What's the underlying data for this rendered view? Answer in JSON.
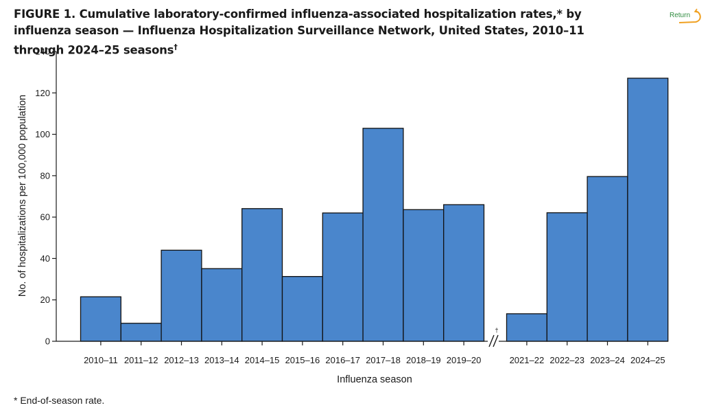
{
  "figure": {
    "label": "FIGURE 1",
    "title": "Cumulative laboratory-confirmed influenza-associated hospitalization rates,* by influenza season — Influenza Hospitalization Surveillance Network, United States, 2010–11 through 2024–25 seasons",
    "title_mark": "†",
    "return_label": "Return",
    "footnote": "* End-of-season rate."
  },
  "chart_data": {
    "type": "bar",
    "title": "",
    "xlabel": "Influenza season",
    "ylabel": "No. of hospitalizations per 100,000 population",
    "ylim": [
      0,
      140
    ],
    "yticks": [
      0,
      20,
      40,
      60,
      80,
      100,
      120,
      140
    ],
    "grid": false,
    "axis_break_after": "2019–20",
    "axis_break_mark": "†",
    "categories": [
      "2010–11",
      "2011–12",
      "2012–13",
      "2013–14",
      "2014–15",
      "2015–16",
      "2016–17",
      "2017–18",
      "2018–19",
      "2019–20",
      "2021–22",
      "2022–23",
      "2023–24",
      "2024–25"
    ],
    "values": [
      21.5,
      8.7,
      44,
      35.1,
      64.1,
      31.3,
      62,
      102.9,
      63.6,
      66,
      13.3,
      62.1,
      79.6,
      127.1
    ],
    "bar_color": "#4a86cc"
  }
}
